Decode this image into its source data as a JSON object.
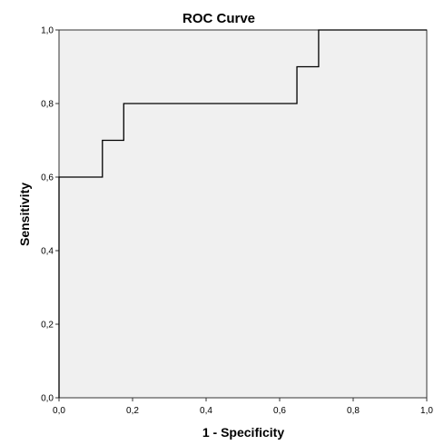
{
  "chart_data": {
    "type": "line",
    "title": "ROC Curve",
    "xlabel": "1 - Specificity",
    "ylabel": "Sensitivity",
    "xlim": [
      0,
      1
    ],
    "ylim": [
      0,
      1
    ],
    "xticks": [
      0,
      0.2,
      0.4,
      0.6,
      0.8,
      1
    ],
    "yticks": [
      0,
      0.2,
      0.4,
      0.6,
      0.8,
      1
    ],
    "xtick_labels": [
      "0,0",
      "0,2",
      "0,4",
      "0,6",
      "0,8",
      "1,0"
    ],
    "ytick_labels": [
      "0,0",
      "0,2",
      "0,4",
      "0,6",
      "0,8",
      "1,0"
    ],
    "grid": false,
    "plot_background": "#f0f0f0",
    "line_color": "#000000",
    "series": [
      {
        "step": "post",
        "x": [
          0,
          0,
          0.118,
          0.118,
          0.176,
          0.176,
          0.647,
          0.647,
          0.706,
          0.706,
          1
        ],
        "y": [
          0,
          0.6,
          0.6,
          0.7,
          0.7,
          0.8,
          0.8,
          0.9,
          0.9,
          1,
          1
        ]
      }
    ]
  }
}
